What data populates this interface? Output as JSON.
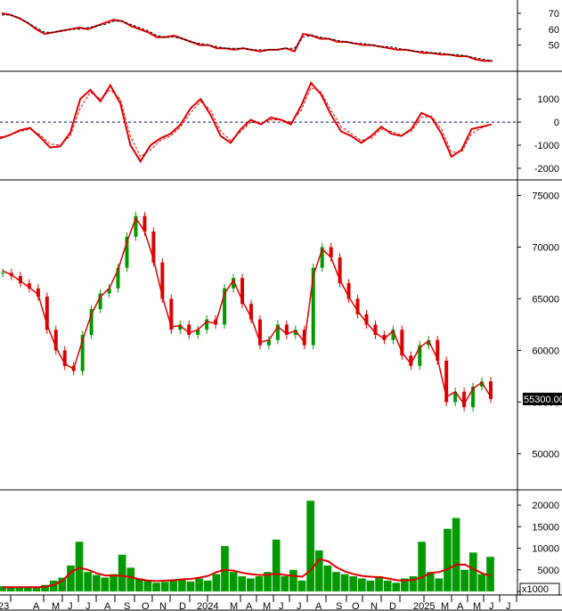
{
  "chart_data": {
    "type": "stock-chart",
    "panels": [
      {
        "id": "rsi",
        "y_ticks": [
          "50",
          "60",
          "70"
        ],
        "ylim": [
          38,
          75
        ],
        "series": [
          {
            "kind": "line",
            "color": "#e00000",
            "values": [
              70,
              69,
              67,
              64,
              60,
              57,
              58,
              59,
              60,
              61,
              60,
              62,
              64,
              66,
              65,
              62,
              60,
              58,
              55,
              55,
              56,
              54,
              52,
              50,
              50,
              48,
              48,
              47,
              48,
              47,
              46,
              47,
              47,
              48,
              46,
              57,
              56,
              54,
              54,
              52,
              52,
              51,
              50,
              50,
              49,
              48,
              47,
              47,
              46,
              45,
              45,
              44,
              44,
              43,
              43,
              41,
              40,
              40
            ]
          },
          {
            "kind": "line",
            "color": "#000000",
            "dashed": true,
            "values": [
              69,
              69,
              67,
              64,
              61,
              58,
              58,
              59,
              60,
              60,
              61,
              62,
              63,
              65,
              65,
              63,
              61,
              59,
              56,
              55,
              55,
              54,
              52,
              51,
              50,
              49,
              48,
              48,
              48,
              47,
              47,
              47,
              47,
              48,
              48,
              55,
              56,
              55,
              54,
              53,
              52,
              51,
              51,
              50,
              49,
              49,
              48,
              47,
              46,
              46,
              45,
              45,
              44,
              44,
              43,
              42,
              41,
              40
            ]
          }
        ]
      },
      {
        "id": "macd",
        "y_ticks": [
          "1000",
          "0",
          "-1000",
          "-2000"
        ],
        "ylim": [
          -2350,
          2050
        ],
        "zero_line": true,
        "series": [
          {
            "kind": "line",
            "color": "#e00000",
            "values": [
              -700,
              -550,
              -350,
              -250,
              -650,
              -1100,
              -1050,
              -450,
              1000,
              1400,
              900,
              1600,
              800,
              -1000,
              -1700,
              -1000,
              -700,
              -500,
              -100,
              600,
              1000,
              300,
              -600,
              -900,
              -300,
              100,
              -100,
              200,
              100,
              -100,
              700,
              1700,
              1200,
              300,
              -400,
              -600,
              -900,
              -600,
              -200,
              -500,
              -600,
              -300,
              400,
              200,
              -500,
              -1500,
              -1200,
              -300,
              -200,
              -100
            ]
          },
          {
            "kind": "line",
            "color": "#e00000",
            "dashed": true,
            "values": [
              -650,
              -550,
              -400,
              -300,
              -550,
              -950,
              -1000,
              -600,
              600,
              1300,
              1000,
              1400,
              1000,
              -600,
              -1500,
              -1200,
              -800,
              -600,
              -200,
              400,
              900,
              500,
              -400,
              -800,
              -400,
              0,
              -50,
              100,
              100,
              0,
              500,
              1500,
              1300,
              500,
              -200,
              -500,
              -800,
              -700,
              -300,
              -400,
              -550,
              -400,
              200,
              250,
              -300,
              -1300,
              -1300,
              -500,
              -250,
              -100
            ]
          }
        ]
      },
      {
        "id": "price",
        "y_ticks": [
          "50000",
          "55000",
          "60000",
          "65000",
          "70000",
          "75000"
        ],
        "ylim": [
          46500,
          76500
        ],
        "last_price_label": "55300.00",
        "last_price": 55300,
        "series": [
          {
            "kind": "candles",
            "up_color": "#009900",
            "down_color": "#dd0000",
            "close": [
              67500,
              67200,
              66500,
              66000,
              65200,
              62000,
              60000,
              58500,
              58000,
              61500,
              64000,
              65500,
              66000,
              68000,
              71000,
              73000,
              71500,
              68500,
              65000,
              62000,
              62500,
              61500,
              62000,
              63000,
              62500,
              66000,
              67000,
              64500,
              63000,
              60500,
              61000,
              62500,
              61500,
              62000,
              60500,
              68000,
              70000,
              69000,
              66500,
              65000,
              63500,
              62500,
              61500,
              61000,
              62000,
              59500,
              58500,
              60500,
              61000,
              59000,
              55000,
              56000,
              54500,
              56500,
              57000,
              55300
            ]
          },
          {
            "kind": "line",
            "color": "#dd0000",
            "values": [
              67700,
              67300,
              66700,
              66100,
              65400,
              62500,
              60300,
              58700,
              58200,
              61000,
              63500,
              65200,
              66000,
              67800,
              70500,
              72800,
              71500,
              68800,
              65200,
              62300,
              62400,
              61700,
              62000,
              62800,
              62600,
              65500,
              66800,
              64800,
              63200,
              60800,
              61000,
              62300,
              61600,
              61900,
              60800,
              67200,
              69800,
              69000,
              66800,
              65200,
              63800,
              62700,
              61700,
              61100,
              61900,
              59800,
              58700,
              60300,
              60900,
              59200,
              55500,
              56000,
              54800,
              56300,
              56900,
              55500
            ]
          }
        ]
      },
      {
        "id": "volume",
        "y_ticks": [
          "0",
          "5000",
          "10000",
          "15000",
          "20000"
        ],
        "ylim": [
          0,
          22500
        ],
        "unit_label": "x1000",
        "series": [
          {
            "kind": "bars",
            "color": "#009900",
            "values": [
              1200,
              900,
              1000,
              1100,
              800,
              1500,
              2500,
              3200,
              6000,
              11500,
              4500,
              3800,
              3200,
              4000,
              8500,
              5500,
              3000,
              2500,
              2000,
              2200,
              2500,
              2800,
              2300,
              3000,
              2500,
              4000,
              10500,
              4500,
              3500,
              3000,
              3500,
              4500,
              12000,
              3500,
              5000,
              2500,
              21000,
              9500,
              6000,
              4500,
              4000,
              3500,
              3000,
              2500,
              3500,
              2500,
              2000,
              3000,
              3500,
              11500,
              4500,
              3000,
              14500,
              17000,
              5000,
              9000,
              4000,
              8000
            ]
          },
          {
            "kind": "line",
            "color": "#dd0000",
            "values": [
              1000,
              1000,
              1000,
              1000,
              1000,
              1100,
              1500,
              2500,
              4500,
              5500,
              5000,
              4200,
              3700,
              3700,
              3600,
              3300,
              2800,
              2500,
              2400,
              2500,
              2600,
              2800,
              2900,
              3200,
              3600,
              4500,
              5000,
              4800,
              4300,
              4000,
              3800,
              3900,
              4100,
              3800,
              3600,
              3400,
              5000,
              7500,
              7000,
              5600,
              4600,
              4000,
              3600,
              3400,
              3300,
              3000,
              2600,
              2500,
              2700,
              3300,
              4300,
              4500,
              5200,
              6200,
              6200,
              5200,
              4200,
              3600
            ]
          }
        ]
      }
    ],
    "x_ticks": [
      "23",
      "A",
      "M",
      "J",
      "J",
      "A",
      "S",
      "O",
      "N",
      "D",
      "2024",
      "M",
      "A",
      "M",
      "J",
      "J",
      "A",
      "S",
      "O",
      "N",
      "D",
      "2025",
      "M",
      "A",
      "M",
      "J",
      "J"
    ]
  }
}
